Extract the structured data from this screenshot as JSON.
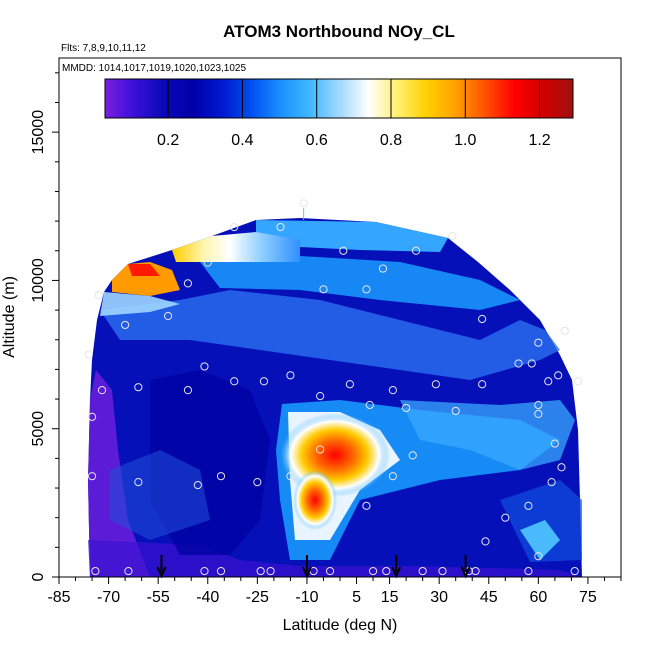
{
  "chart_data": {
    "type": "heatmap",
    "title": "ATOM3 Northbound NOy_CL",
    "flights_label": "Flts: 7,8,9,10,11,12",
    "dates_label": "MMDD: 1014,1017,1019,1020,1023,1025",
    "xlabel": "Latitude (deg N)",
    "ylabel": "Altitude (m)",
    "xlim": [
      -85,
      85
    ],
    "ylim": [
      0,
      17500
    ],
    "x_tick_labels": [
      "-85",
      "-70",
      "-55",
      "-40",
      "-25",
      "-10",
      "5",
      "15",
      "30",
      "45",
      "60",
      "75"
    ],
    "x_tick_values": [
      -85,
      -70,
      -55,
      -40,
      -25,
      -10,
      5,
      15,
      30,
      45,
      60,
      75
    ],
    "y_tick_labels": [
      "0",
      "5000",
      "10000",
      "15000"
    ],
    "y_tick_values": [
      0,
      5000,
      10000,
      15000
    ],
    "colorbar": {
      "range": [
        0.03,
        1.29
      ],
      "tick_labels": [
        "0.2",
        "0.4",
        "0.6",
        "0.8",
        "1.0",
        "1.2"
      ],
      "tick_values": [
        0.2,
        0.4,
        0.6,
        0.8,
        1.0,
        1.2
      ],
      "colors": [
        "#7a1fe0",
        "#3a10d8",
        "#0a08b8",
        "#0000a8",
        "#0018d0",
        "#0050f0",
        "#1a90ff",
        "#40b8ff",
        "#a0d8ff",
        "#ffffff",
        "#fff070",
        "#ffd000",
        "#ffa000",
        "#ff5000",
        "#ff0000",
        "#d00000",
        "#a01010"
      ]
    },
    "profile_marker_latitudes": [
      -54,
      -10,
      17,
      38
    ],
    "sample_points": [
      [
        -74,
        200
      ],
      [
        -64,
        200
      ],
      [
        -41,
        200
      ],
      [
        -36,
        200
      ],
      [
        -24,
        200
      ],
      [
        -21,
        200
      ],
      [
        -8,
        200
      ],
      [
        -3,
        200
      ],
      [
        10,
        200
      ],
      [
        14,
        200
      ],
      [
        25,
        200
      ],
      [
        31,
        200
      ],
      [
        39,
        200
      ],
      [
        41,
        200
      ],
      [
        57,
        200
      ],
      [
        71,
        200
      ],
      [
        -75,
        3400
      ],
      [
        -61,
        3200
      ],
      [
        -43,
        3100
      ],
      [
        -36,
        3400
      ],
      [
        -25,
        3200
      ],
      [
        -15,
        3400
      ],
      [
        -6,
        4300
      ],
      [
        8,
        2400
      ],
      [
        22,
        4100
      ],
      [
        16,
        3400
      ],
      [
        50,
        2000
      ],
      [
        57,
        2400
      ],
      [
        64,
        3200
      ],
      [
        65,
        4500
      ],
      [
        60,
        5500
      ],
      [
        67,
        3700
      ],
      [
        60,
        700
      ],
      [
        44,
        1200
      ],
      [
        -73,
        9500
      ],
      [
        -65,
        8500
      ],
      [
        -52,
        8800
      ],
      [
        -46,
        9900
      ],
      [
        -40,
        10600
      ],
      [
        -32,
        11800
      ],
      [
        -18,
        11800
      ],
      [
        -11,
        12600
      ],
      [
        -5,
        9700
      ],
      [
        1,
        11000
      ],
      [
        8,
        9700
      ],
      [
        13,
        10400
      ],
      [
        23,
        11000
      ],
      [
        34,
        11500
      ],
      [
        43,
        8700
      ],
      [
        60,
        7900
      ],
      [
        68,
        8300
      ],
      [
        -76,
        7500
      ],
      [
        -75,
        5400
      ],
      [
        -72,
        6300
      ],
      [
        -61,
        6400
      ],
      [
        -46,
        6300
      ],
      [
        -41,
        7100
      ],
      [
        -32,
        6600
      ],
      [
        -23,
        6600
      ],
      [
        -15,
        6800
      ],
      [
        -6,
        6100
      ],
      [
        3,
        6500
      ],
      [
        9,
        5800
      ],
      [
        16,
        6300
      ],
      [
        20,
        5700
      ],
      [
        29,
        6500
      ],
      [
        35,
        5600
      ],
      [
        43,
        6500
      ],
      [
        54,
        7200
      ],
      [
        58,
        7200
      ],
      [
        60,
        5800
      ],
      [
        63,
        6600
      ],
      [
        66,
        6800
      ],
      [
        72,
        6600
      ]
    ]
  }
}
